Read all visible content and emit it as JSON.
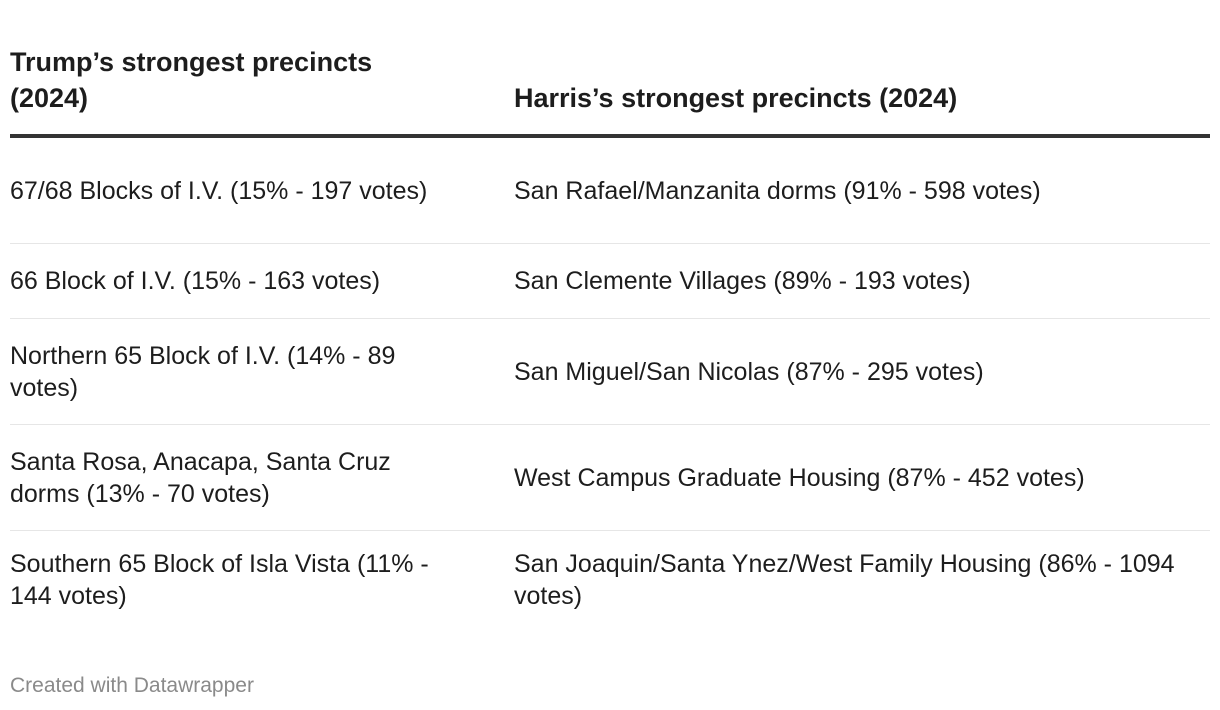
{
  "table": {
    "headers": [
      "Trump’s strongest precincts (2024)",
      "Harris’s strongest precincts (2024)"
    ],
    "rows": [
      [
        "67/68 Blocks of I.V. (15% - 197 votes)",
        "San Rafael/Manzanita dorms (91% - 598 votes)"
      ],
      [
        "66 Block of I.V. (15% - 163 votes)",
        "San Clemente Villages (89% - 193 votes)"
      ],
      [
        "Northern 65 Block of I.V. (14% - 89 votes)",
        "San Miguel/San Nicolas (87% - 295 votes)"
      ],
      [
        "Santa Rosa, Anacapa, Santa Cruz dorms (13% - 70 votes)",
        "West Campus Graduate Housing (87% - 452 votes)"
      ],
      [
        "Southern 65 Block of Isla Vista (11% - 144 votes)",
        "San Joaquin/Santa Ynez/West Family Housing (86% - 1094 votes)"
      ]
    ]
  },
  "footer": {
    "credit": "Created with Datawrapper"
  }
}
